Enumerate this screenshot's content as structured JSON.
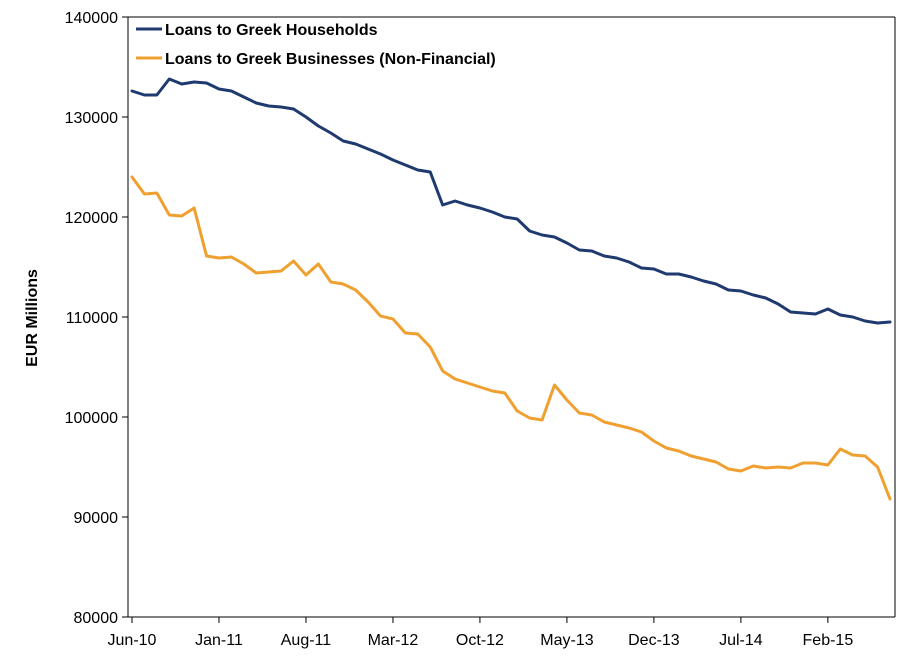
{
  "chart_data": {
    "type": "line",
    "title": "",
    "xlabel": "",
    "ylabel": "EUR Millions",
    "ylim": [
      80000,
      140000
    ],
    "yticks": [
      80000,
      90000,
      100000,
      110000,
      120000,
      130000,
      140000
    ],
    "ytick_labels": [
      "80000",
      "90000",
      "100000",
      "110000",
      "120000",
      "130000",
      "140000"
    ],
    "xtick_labels": [
      "Jun-10",
      "Jan-11",
      "Aug-11",
      "Mar-12",
      "Oct-12",
      "May-13",
      "Dec-13",
      "Jul-14",
      "Feb-15"
    ],
    "xtick_positions": [
      0,
      7,
      14,
      21,
      28,
      35,
      42,
      49,
      56
    ],
    "x_count": 62,
    "grid": false,
    "legend_position": "top-left",
    "series": [
      {
        "name": "Loans to Greek Households",
        "color": "#1F3A6E",
        "values": [
          132600,
          132200,
          132200,
          133800,
          133300,
          133500,
          133400,
          132800,
          132600,
          132000,
          131400,
          131100,
          131000,
          130800,
          130000,
          129100,
          128400,
          127600,
          127300,
          126800,
          126300,
          125700,
          125200,
          124700,
          124500,
          121200,
          121600,
          121200,
          120900,
          120500,
          120000,
          119800,
          118600,
          118200,
          118000,
          117400,
          116700,
          116600,
          116100,
          115900,
          115500,
          114900,
          114800,
          114300,
          114300,
          114000,
          113600,
          113300,
          112700,
          112600,
          112200,
          111900,
          111300,
          110500,
          110400,
          110300,
          110800,
          110200,
          110000,
          109600,
          109400,
          109500
        ]
      },
      {
        "name": "Loans to Greek Businesses (Non-Financial)",
        "color": "#F0A030",
        "values": [
          124000,
          122300,
          122400,
          120200,
          120100,
          120900,
          116100,
          115900,
          116000,
          115300,
          114400,
          114500,
          114600,
          115600,
          114200,
          115300,
          113500,
          113300,
          112700,
          111500,
          110100,
          109800,
          108400,
          108300,
          107000,
          104600,
          103800,
          103400,
          103000,
          102600,
          102400,
          100600,
          99900,
          99700,
          103200,
          101700,
          100400,
          100200,
          99500,
          99200,
          98900,
          98500,
          97600,
          96900,
          96600,
          96100,
          95800,
          95500,
          94800,
          94600,
          95100,
          94900,
          95000,
          94900,
          95400,
          95400,
          95200,
          96800,
          96200,
          96100,
          95000,
          91800
        ]
      }
    ]
  }
}
